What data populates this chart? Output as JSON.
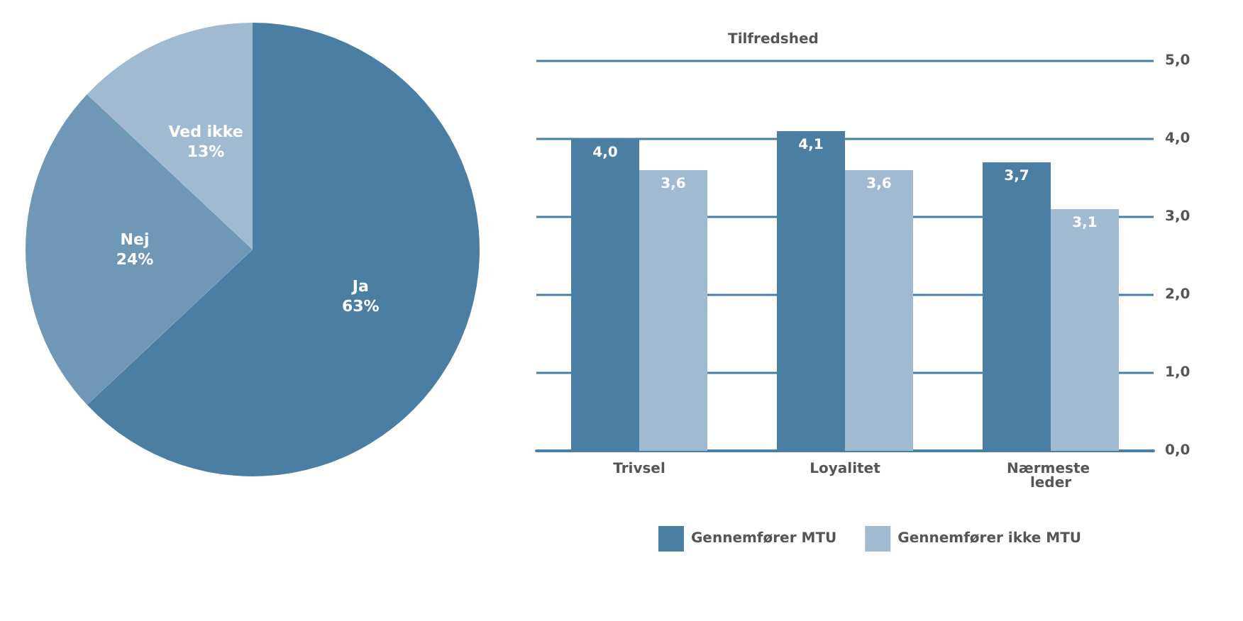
{
  "chart_data": [
    {
      "type": "pie",
      "categories": [
        "Ja",
        "Nej",
        "Ved ikke"
      ],
      "values": [
        63,
        24,
        13
      ],
      "colors": [
        "#4a7fa3",
        "#6f98b6",
        "#9fbad1"
      ],
      "value_labels": [
        "63%",
        "24%",
        "13%"
      ]
    },
    {
      "type": "bar",
      "ylabel": "Tilfredshed",
      "categories": [
        "Trivsel",
        "Loyalitet",
        "Nærmeste leder"
      ],
      "series": [
        {
          "name": "Gennemfører MTU",
          "color": "#4a7fa3",
          "values": [
            4.0,
            4.1,
            3.7
          ],
          "value_labels": [
            "4,0",
            "4,1",
            "3,7"
          ]
        },
        {
          "name": "Gennemfører ikke MTU",
          "color": "#9fbad1",
          "values": [
            3.6,
            3.6,
            3.1
          ],
          "value_labels": [
            "3,6",
            "3,6",
            "3,1"
          ]
        }
      ],
      "ylim": [
        0,
        5
      ],
      "yticks": [
        {
          "value": 0,
          "label": "0,0"
        },
        {
          "value": 1,
          "label": "1,0"
        },
        {
          "value": 2,
          "label": "2,0"
        },
        {
          "value": 3,
          "label": "3,0"
        },
        {
          "value": 4,
          "label": "4,0"
        },
        {
          "value": 5,
          "label": "5,0"
        }
      ],
      "grid": "y",
      "legend": "bottom"
    }
  ]
}
